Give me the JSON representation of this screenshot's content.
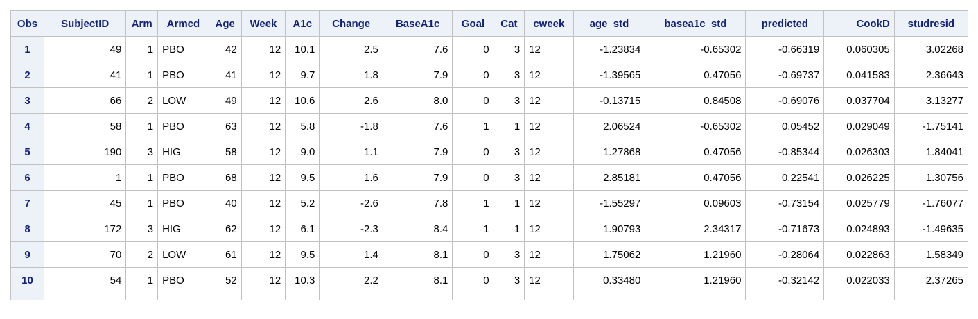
{
  "table": {
    "columns": [
      "Obs",
      "SubjectID",
      "Arm",
      "Armcd",
      "Age",
      "Week",
      "A1c",
      "Change",
      "BaseA1c",
      "Goal",
      "Cat",
      "cweek",
      "age_std",
      "basea1c_std",
      "predicted",
      "CookD",
      "studresid"
    ],
    "rows": [
      [
        "1",
        "49",
        "1",
        "PBO",
        "42",
        "12",
        "10.1",
        "2.5",
        "7.6",
        "0",
        "3",
        "12",
        "-1.23834",
        "-0.65302",
        "-0.66319",
        "0.060305",
        "3.02268"
      ],
      [
        "2",
        "41",
        "1",
        "PBO",
        "41",
        "12",
        "9.7",
        "1.8",
        "7.9",
        "0",
        "3",
        "12",
        "-1.39565",
        "0.47056",
        "-0.69737",
        "0.041583",
        "2.36643"
      ],
      [
        "3",
        "66",
        "2",
        "LOW",
        "49",
        "12",
        "10.6",
        "2.6",
        "8.0",
        "0",
        "3",
        "12",
        "-0.13715",
        "0.84508",
        "-0.69076",
        "0.037704",
        "3.13277"
      ],
      [
        "4",
        "58",
        "1",
        "PBO",
        "63",
        "12",
        "5.8",
        "-1.8",
        "7.6",
        "1",
        "1",
        "12",
        "2.06524",
        "-0.65302",
        "0.05452",
        "0.029049",
        "-1.75141"
      ],
      [
        "5",
        "190",
        "3",
        "HIG",
        "58",
        "12",
        "9.0",
        "1.1",
        "7.9",
        "0",
        "3",
        "12",
        "1.27868",
        "0.47056",
        "-0.85344",
        "0.026303",
        "1.84041"
      ],
      [
        "6",
        "1",
        "1",
        "PBO",
        "68",
        "12",
        "9.5",
        "1.6",
        "7.9",
        "0",
        "3",
        "12",
        "2.85181",
        "0.47056",
        "0.22541",
        "0.026225",
        "1.30756"
      ],
      [
        "7",
        "45",
        "1",
        "PBO",
        "40",
        "12",
        "5.2",
        "-2.6",
        "7.8",
        "1",
        "1",
        "12",
        "-1.55297",
        "0.09603",
        "-0.73154",
        "0.025779",
        "-1.76077"
      ],
      [
        "8",
        "172",
        "3",
        "HIG",
        "62",
        "12",
        "6.1",
        "-2.3",
        "8.4",
        "1",
        "1",
        "12",
        "1.90793",
        "2.34317",
        "-0.71673",
        "0.024893",
        "-1.49635"
      ],
      [
        "9",
        "70",
        "2",
        "LOW",
        "61",
        "12",
        "9.5",
        "1.4",
        "8.1",
        "0",
        "3",
        "12",
        "1.75062",
        "1.21960",
        "-0.28064",
        "0.022863",
        "1.58349"
      ],
      [
        "10",
        "54",
        "1",
        "PBO",
        "52",
        "12",
        "10.3",
        "2.2",
        "8.1",
        "0",
        "3",
        "12",
        "0.33480",
        "1.21960",
        "-0.32142",
        "0.022033",
        "2.37265"
      ]
    ]
  }
}
